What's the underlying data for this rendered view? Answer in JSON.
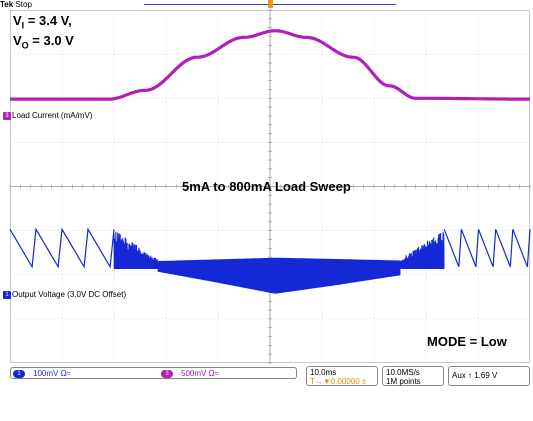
{
  "header": {
    "brand": "Tek",
    "status": "Stop"
  },
  "annotations": {
    "vin_main": "V",
    "vin_sub": "I",
    "vin_rest": " = 3.4 V,",
    "vout_main": "V",
    "vout_sub": "O",
    "vout_rest": " = 3.0 V",
    "sweep": "5mA to 800mA Load Sweep",
    "mode": "MODE = Low"
  },
  "channels": {
    "ch3": {
      "marker": "3",
      "label": "Load Current (mA/mV)",
      "scale": "500mV Ω≈",
      "color": "#b21fb5"
    },
    "ch1": {
      "marker": "1",
      "label": "Output Voltage (3.0V DC Offset)",
      "scale": "100mV Ω≈",
      "color": "#1428d6"
    }
  },
  "readouts": {
    "timebase": "10.0ms",
    "trigger_offset": "T→▼0.00000 s",
    "sample_rate": "10.0MS/s",
    "record_length": "1M points",
    "trigger": "Aux ↑  1.69 V"
  },
  "chart_data": {
    "type": "line",
    "grid": true,
    "divisions": {
      "x": 10,
      "y": 8
    },
    "xlim": [
      0,
      10
    ],
    "series": [
      {
        "name": "Load Current (mA/mV)",
        "color": "#b21fb5",
        "baseline_div": 2.02,
        "points": [
          [
            0,
            0
          ],
          [
            1.9,
            0
          ],
          [
            2.6,
            0.2
          ],
          [
            3.6,
            0.95
          ],
          [
            4.5,
            1.4
          ],
          [
            5.1,
            1.55
          ],
          [
            5.7,
            1.4
          ],
          [
            6.6,
            0.95
          ],
          [
            7.3,
            0.3
          ],
          [
            7.8,
            0.02
          ],
          [
            10,
            0
          ]
        ]
      },
      {
        "name": "Output Voltage (3.0V DC Offset)",
        "color": "#1428d6",
        "baseline_div": 5.82,
        "envelope_lower": [
          [
            2.85,
            0
          ],
          [
            4.0,
            -0.25
          ],
          [
            5.1,
            -0.5
          ],
          [
            6.3,
            -0.3
          ],
          [
            7.5,
            -0.08
          ]
        ],
        "sawtooth_left_periods": 4,
        "sawtooth_right_periods": 5,
        "sawtooth_amplitude_div": 0.85
      }
    ]
  }
}
